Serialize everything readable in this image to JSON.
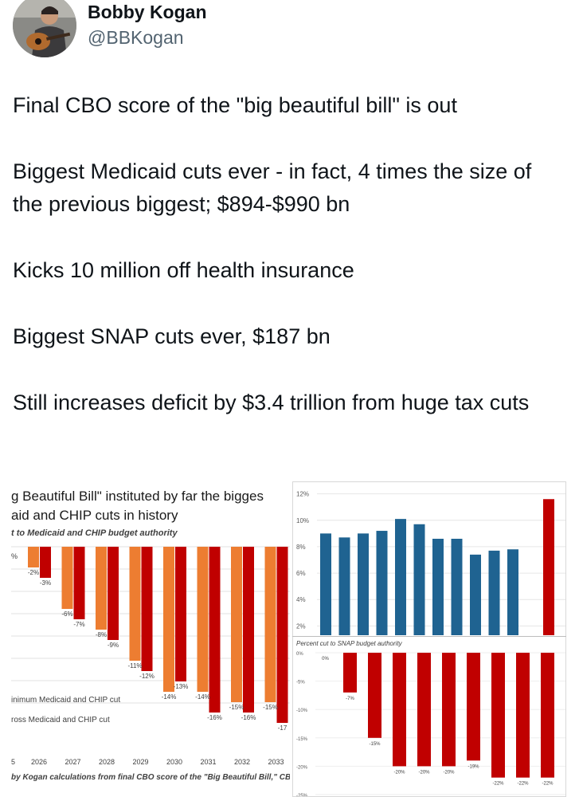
{
  "author": {
    "name": "Bobby Kogan",
    "handle": "@BBKogan",
    "avatar_icon": "avatar-guitar-photo"
  },
  "tweet": {
    "paragraphs": [
      "Final CBO score of the \"big beautiful bill\" is out",
      "Biggest Medicaid cuts ever - in fact, 4 times the size of the previous biggest; $894-$990 bn",
      "Kicks 10 million off health insurance",
      "Biggest SNAP cuts ever, $187 bn",
      "Still increases deficit by $3.4 trillion from huge tax cuts"
    ]
  },
  "colors": {
    "orange": "#ed7d31",
    "red": "#c00000",
    "blue": "#1f6391",
    "text": "#0f1419",
    "muted": "#536471"
  },
  "chart_data": [
    {
      "type": "bar",
      "title_line1": "g Beautiful Bill\" instituted by far the bigges",
      "title_line2": "aid and CHIP cuts in history",
      "subtitle": "t to Medicaid and CHIP budget authority",
      "zero_label": "%",
      "categories": [
        "2026",
        "2027",
        "2028",
        "2029",
        "2030",
        "2031",
        "2032",
        "2033"
      ],
      "first_tick_label": "5",
      "series": [
        {
          "name": "Minimum Medicaid and CHIP cut",
          "legend_label": "inimum Medicaid and CHIP cut",
          "values": [
            -2,
            -6,
            -8,
            -11,
            -14,
            -14,
            -15,
            -15
          ]
        },
        {
          "name": "Gross Medicaid and CHIP cut",
          "legend_label": "ross Medicaid and CHIP cut",
          "values": [
            -3,
            -7,
            -9,
            -12,
            -13,
            -16,
            -16,
            -17
          ]
        }
      ],
      "data_labels": [
        [
          "-2%",
          "-6%",
          "-8%",
          "-11%",
          "-14%",
          "-14%",
          "-15%",
          "-15%"
        ],
        [
          "-3%",
          "-7%",
          "-9%",
          "-12%",
          "-13%",
          "-16%",
          "-16%",
          "-17"
        ]
      ],
      "source": "by Kogan calculations from final CBO score of the \"Big Beautiful Bill,\" CBO Jai",
      "ylim": [
        -18,
        0
      ]
    },
    {
      "type": "bar",
      "series": [
        {
          "name": "blue",
          "values": [
            9.0,
            8.7,
            9.0,
            9.2,
            10.1,
            9.7,
            8.6,
            8.6,
            7.4,
            7.7,
            7.8
          ]
        },
        {
          "name": "red",
          "values": [
            11.6
          ]
        }
      ],
      "y_ticks": [
        "12%",
        "10%",
        "8%",
        "6%",
        "4%",
        "2%"
      ],
      "ylim": [
        1.3,
        12.4
      ]
    },
    {
      "type": "bar",
      "subtitle": "Percent cut to SNAP budget authority",
      "y_ticks": [
        "0%",
        "-5%",
        "-10%",
        "-15%",
        "-20%",
        "-25%"
      ],
      "values": [
        0,
        -7,
        -15,
        -20,
        -20,
        -20,
        -19,
        -22,
        -22,
        -22
      ],
      "data_labels": [
        "0%",
        "-7%",
        "-15%",
        "-20%",
        "-20%",
        "-20%",
        "-19%",
        "-22%",
        "-22%",
        "-22%"
      ],
      "ylim": [
        -25,
        0
      ]
    }
  ]
}
